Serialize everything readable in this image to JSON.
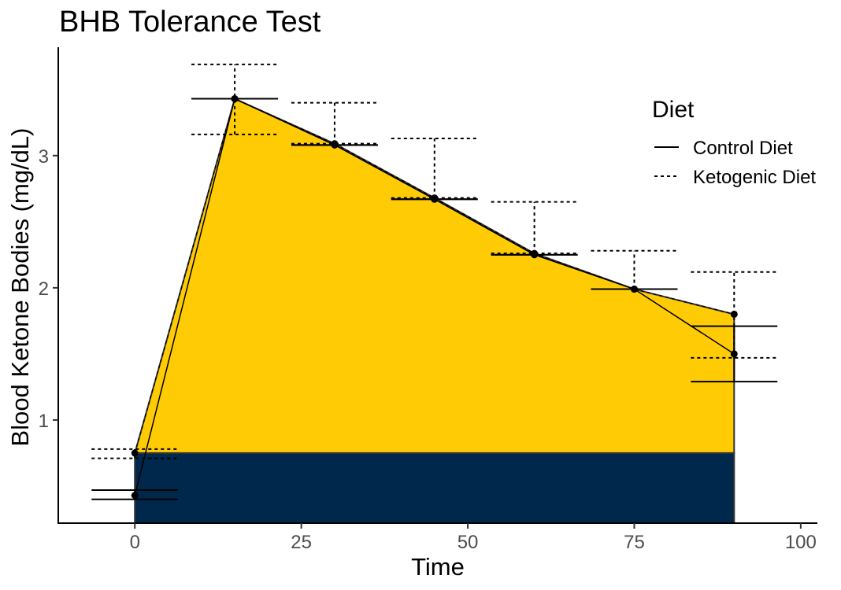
{
  "chart_data": {
    "type": "line",
    "title": "BHB Tolerance Test",
    "xlabel": "Time",
    "ylabel": "Blood Ketone Bodies (mg/dL)",
    "xlim": [
      -11.5,
      102.5
    ],
    "ylim": [
      0.22,
      3.82
    ],
    "xticks": [
      0,
      25,
      50,
      75,
      100
    ],
    "yticks": [
      1,
      2,
      3
    ],
    "grid": false,
    "legend": {
      "title": "Diet",
      "position": "right",
      "entries": [
        {
          "label": "Control Diet",
          "linetype": "solid"
        },
        {
          "label": "Ketogenic Diet",
          "linetype": "dashed"
        }
      ]
    },
    "colors": {
      "upper_fill": "#FFCB05",
      "lower_fill": "#00274C",
      "outline": "#333333",
      "points": "#000000"
    },
    "series": [
      {
        "name": "Control Diet",
        "linetype": "solid",
        "x": [
          0,
          15,
          30,
          45,
          60,
          75,
          90
        ],
        "y": [
          0.43,
          3.43,
          3.08,
          2.67,
          2.25,
          1.99,
          1.5
        ],
        "upper": [
          0.47,
          3.43,
          3.08,
          2.67,
          2.25,
          1.99,
          1.71
        ],
        "lower": [
          0.4,
          3.43,
          3.08,
          2.67,
          2.25,
          1.99,
          1.29
        ]
      },
      {
        "name": "Ketogenic Diet",
        "linetype": "dashed",
        "x": [
          0,
          15,
          30,
          45,
          60,
          75,
          90
        ],
        "y": [
          0.75,
          3.43,
          3.09,
          2.68,
          2.26,
          1.99,
          1.8
        ],
        "upper": [
          0.78,
          3.69,
          3.4,
          3.13,
          2.65,
          2.28,
          2.12
        ],
        "lower": [
          0.71,
          3.16,
          3.09,
          2.68,
          2.26,
          1.99,
          1.47
        ]
      }
    ],
    "bands": [
      {
        "fill": "upper_fill",
        "from": "baseline_ketogenic",
        "to": "Ketogenic Diet",
        "x": [
          0,
          90
        ]
      },
      {
        "fill": "lower_fill",
        "from": "axis_min",
        "to": "baseline_ketogenic",
        "x": [
          0,
          90
        ]
      }
    ],
    "baseline_ketogenic": 0.75,
    "errorbar_halfwidth": 6.5
  }
}
